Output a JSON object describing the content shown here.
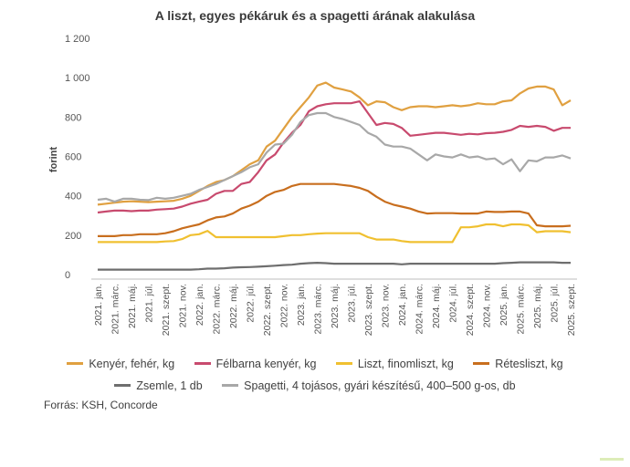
{
  "chart_data": {
    "type": "line",
    "title": "A liszt, egyes pékáruk és a spagetti árának alakulása",
    "xlabel": "",
    "ylabel": "forint",
    "ylim": [
      0,
      1200
    ],
    "yticks": [
      0,
      200,
      400,
      600,
      800,
      1000,
      1200
    ],
    "ytick_labels": [
      "0",
      "200",
      "400",
      "600",
      "800",
      "1 000",
      "1 200"
    ],
    "grid": false,
    "legend_position": "bottom",
    "x": [
      "2021. jan.",
      "2021. febr.",
      "2021. márc.",
      "2021. ápr.",
      "2021. máj.",
      "2021. jún.",
      "2021. júl.",
      "2021. aug.",
      "2021. szept.",
      "2021. okt.",
      "2021. nov.",
      "2021. dec.",
      "2022. jan.",
      "2022. febr.",
      "2022. márc.",
      "2022. ápr.",
      "2022. máj.",
      "2022. jún.",
      "2022. júl.",
      "2022. aug.",
      "2022. szept.",
      "2022. okt.",
      "2022. nov.",
      "2022. dec.",
      "2023. jan.",
      "2023. febr.",
      "2023. márc.",
      "2023. ápr.",
      "2023. máj.",
      "2023. jún.",
      "2023. júl.",
      "2023. aug.",
      "2023. szept.",
      "2023. okt.",
      "2023. nov.",
      "2023. dec.",
      "2024. jan.",
      "2024. febr.",
      "2024. márc.",
      "2024. ápr.",
      "2024. máj.",
      "2024. jún.",
      "2024. júl.",
      "2024. aug.",
      "2024. szept.",
      "2024. okt.",
      "2024. nov.",
      "2024. dec.",
      "2025. jan.",
      "2025. febr.",
      "2025. márc.",
      "2025. ápr.",
      "2025. máj.",
      "2025. jún.",
      "2025. júl.",
      "2025. aug.",
      "2025. szept."
    ],
    "x_tick_labels": [
      "2021. jan.",
      "2021. márc.",
      "2021. máj.",
      "2021. júl.",
      "2021. szept.",
      "2021. nov.",
      "2022. jan.",
      "2022. márc.",
      "2022. máj.",
      "2022. júl.",
      "2022. szept.",
      "2022. nov.",
      "2023. jan.",
      "2023. márc.",
      "2023. máj.",
      "2023. júl.",
      "2023. szept.",
      "2023. nov.",
      "2024. jan.",
      "2024. márc.",
      "2024. máj.",
      "2024. júl.",
      "2024. szept.",
      "2024. nov.",
      "2025. jan.",
      "2025. márc.",
      "2025. máj.",
      "2025. júl.",
      "2025. szept."
    ],
    "series": [
      {
        "name": "Kenyér, fehér, kg",
        "color": "#e0a040",
        "values": [
          355,
          360,
          365,
          370,
          372,
          370,
          368,
          370,
          372,
          375,
          385,
          400,
          425,
          450,
          470,
          480,
          500,
          530,
          560,
          580,
          650,
          680,
          740,
          800,
          850,
          900,
          960,
          975,
          950,
          940,
          930,
          900,
          860,
          880,
          875,
          850,
          835,
          850,
          855,
          855,
          850,
          855,
          860,
          855,
          860,
          870,
          865,
          865,
          880,
          885,
          920,
          945,
          955,
          955,
          940,
          860,
          885
        ]
      },
      {
        "name": "Félbarna kenyér, kg",
        "color": "#c84a6e",
        "values": [
          315,
          320,
          325,
          325,
          322,
          325,
          325,
          330,
          332,
          335,
          345,
          360,
          370,
          380,
          410,
          425,
          425,
          460,
          470,
          520,
          580,
          610,
          670,
          720,
          760,
          830,
          855,
          865,
          870,
          870,
          870,
          880,
          820,
          760,
          770,
          765,
          745,
          705,
          710,
          715,
          720,
          720,
          715,
          710,
          715,
          712,
          718,
          720,
          725,
          735,
          755,
          750,
          755,
          750,
          730,
          745,
          745
        ]
      },
      {
        "name": "Liszt, finomliszt, kg",
        "color": "#f0c030",
        "values": [
          165,
          165,
          165,
          165,
          165,
          165,
          165,
          165,
          168,
          170,
          180,
          200,
          205,
          222,
          190,
          190,
          190,
          190,
          190,
          190,
          190,
          190,
          195,
          200,
          200,
          205,
          208,
          210,
          210,
          210,
          210,
          210,
          190,
          178,
          178,
          178,
          170,
          165,
          165,
          165,
          165,
          165,
          165,
          240,
          240,
          245,
          255,
          255,
          245,
          255,
          255,
          250,
          215,
          220,
          220,
          220,
          215
        ]
      },
      {
        "name": "Rétesliszt, kg",
        "color": "#c86e1e",
        "values": [
          195,
          195,
          195,
          200,
          200,
          205,
          205,
          205,
          210,
          220,
          235,
          245,
          255,
          275,
          290,
          295,
          310,
          335,
          350,
          370,
          400,
          420,
          430,
          450,
          460,
          460,
          460,
          460,
          460,
          455,
          450,
          440,
          425,
          395,
          370,
          355,
          345,
          335,
          320,
          310,
          312,
          312,
          312,
          310,
          310,
          310,
          320,
          318,
          318,
          320,
          320,
          310,
          250,
          245,
          245,
          245,
          248
        ]
      },
      {
        "name": "Zsemle, 1 db",
        "color": "#6e6e6e",
        "values": [
          25,
          25,
          25,
          25,
          25,
          25,
          25,
          25,
          25,
          25,
          25,
          25,
          27,
          30,
          30,
          32,
          35,
          37,
          38,
          40,
          42,
          45,
          48,
          50,
          55,
          58,
          60,
          58,
          55,
          55,
          55,
          55,
          55,
          55,
          55,
          55,
          52,
          55,
          55,
          55,
          55,
          55,
          55,
          55,
          55,
          55,
          55,
          55,
          58,
          60,
          62,
          62,
          62,
          62,
          62,
          60,
          60
        ]
      },
      {
        "name": "Spagetti, 4 tojásos, gyári készítésű, 400–500 g-os, db",
        "color": "#a8a8a8",
        "values": [
          380,
          385,
          370,
          385,
          385,
          380,
          378,
          390,
          385,
          390,
          400,
          410,
          430,
          445,
          460,
          480,
          500,
          520,
          545,
          560,
          620,
          660,
          665,
          710,
          775,
          810,
          820,
          820,
          800,
          790,
          775,
          760,
          720,
          700,
          660,
          650,
          650,
          640,
          610,
          580,
          610,
          600,
          595,
          610,
          595,
          600,
          585,
          590,
          560,
          585,
          525,
          580,
          575,
          595,
          595,
          605,
          590
        ]
      }
    ]
  },
  "legend": {
    "items": [
      {
        "label": "Kenyér, fehér, kg",
        "color": "#e0a040"
      },
      {
        "label": "Félbarna kenyér, kg",
        "color": "#c84a6e"
      },
      {
        "label": "Liszt, finomliszt, kg",
        "color": "#f0c030"
      },
      {
        "label": "Rétesliszt, kg",
        "color": "#c86e1e"
      },
      {
        "label": "Zsemle, 1 db",
        "color": "#6e6e6e"
      },
      {
        "label": "Spagetti, 4 tojásos, gyári készítésű, 400–500 g-os, db",
        "color": "#a8a8a8"
      }
    ]
  },
  "source": "Forrás: KSH, Concorde"
}
